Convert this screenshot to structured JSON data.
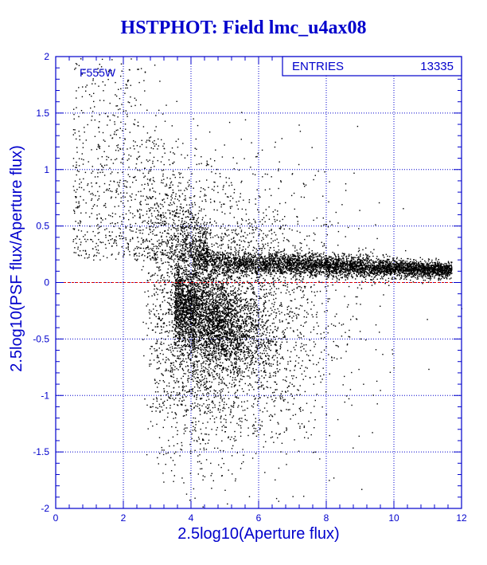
{
  "chart_data": {
    "type": "scatter",
    "title": "HSTPHOT: Field lmc_u4ax08",
    "xlabel": "2.5log10(Aperture flux)",
    "ylabel": "2.5log10(PSF flux/Aperture flux)",
    "filter_label": "F555W",
    "stats": {
      "label": "ENTRIES",
      "value": "13335"
    },
    "xlim": [
      0,
      12
    ],
    "ylim": [
      -2,
      2
    ],
    "xticks": [
      0,
      2,
      4,
      6,
      8,
      10,
      12
    ],
    "yticks": [
      -2,
      -1.5,
      -1,
      -0.5,
      0,
      0.5,
      1,
      1.5,
      2
    ],
    "xtick_labels": [
      "0",
      "2",
      "4",
      "6",
      "8",
      "10",
      "12"
    ],
    "ytick_labels": [
      "-2",
      "-1.5",
      "-1",
      "-0.5",
      "0",
      "0.5",
      "1",
      "1.5",
      "2"
    ],
    "grid": true,
    "reference_line": {
      "y": 0,
      "color": "#dd0000",
      "style": "dashed"
    },
    "entries": 13335,
    "density_clusters": [
      {
        "name": "horizontal-sequence",
        "x_range": [
          4,
          11.7
        ],
        "y_center": 0.15,
        "y_spread": 0.08,
        "fraction": 0.33
      },
      {
        "name": "low-branch",
        "x_range": [
          3.5,
          7.5
        ],
        "y_center": -0.3,
        "y_spread": 0.18,
        "fraction": 0.27
      },
      {
        "name": "upper-wing",
        "x_range": [
          0.5,
          4.5
        ],
        "y_center": 0.7,
        "y_spread": 0.5,
        "fraction": 0.1
      },
      {
        "name": "diffuse",
        "x_range": [
          0.5,
          10
        ],
        "y_center": -0.3,
        "y_spread": 0.6,
        "fraction": 0.3
      }
    ]
  },
  "colors": {
    "frame": "#0000cc",
    "grid": "#0000cc",
    "text": "#0000cc",
    "points": "#000000",
    "reference": "#dd0000"
  }
}
